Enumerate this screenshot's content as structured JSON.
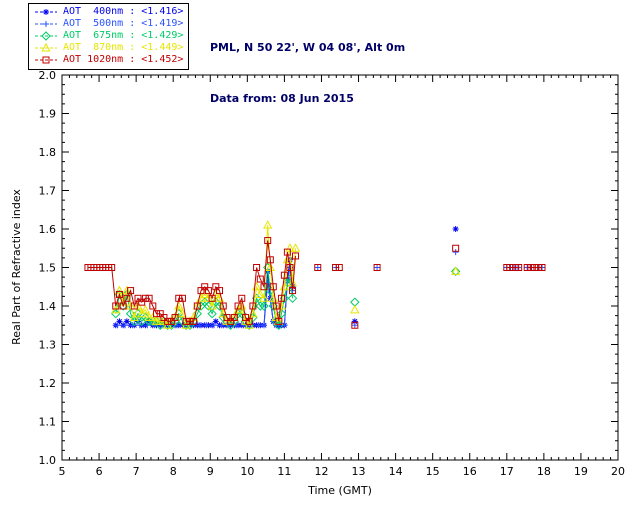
{
  "header": {
    "location": "PML, N 50 22', W 04 08', Alt 0m",
    "data_from": "Data from: 08 Jun 2015"
  },
  "chart_data": {
    "type": "line",
    "title": "",
    "xlabel": "Time (GMT)",
    "ylabel": "Real Part of Refractive index",
    "xlim": [
      5,
      20
    ],
    "ylim": [
      1.0,
      2.0
    ],
    "x_major_tick": 1,
    "y_major_tick": 0.1,
    "grid": false,
    "legend_position": "top-left",
    "series": [
      {
        "name": "AOT 400nm",
        "label": "AOT  400nm : <1.416>",
        "mean": "<1.416>",
        "color": "#0000ee",
        "marker": "asterisk",
        "points": [
          [
            6.45,
            1.35
          ],
          [
            6.55,
            1.36
          ],
          [
            6.65,
            1.35
          ],
          [
            6.75,
            1.36
          ],
          [
            6.85,
            1.35
          ],
          [
            6.95,
            1.35
          ],
          [
            7.05,
            1.36
          ],
          [
            7.15,
            1.35
          ],
          [
            7.25,
            1.35
          ],
          [
            7.35,
            1.36
          ],
          [
            7.45,
            1.35
          ],
          [
            7.55,
            1.35
          ],
          [
            7.65,
            1.35
          ],
          [
            7.75,
            1.35
          ],
          [
            7.85,
            1.35
          ],
          [
            7.95,
            1.35
          ],
          [
            8.05,
            1.35
          ],
          [
            8.15,
            1.35
          ],
          [
            8.25,
            1.35
          ],
          [
            8.35,
            1.35
          ],
          [
            8.45,
            1.35
          ],
          [
            8.55,
            1.35
          ],
          [
            8.65,
            1.35
          ],
          [
            8.75,
            1.35
          ],
          [
            8.85,
            1.35
          ],
          [
            8.95,
            1.35
          ],
          [
            9.05,
            1.35
          ],
          [
            9.15,
            1.36
          ],
          [
            9.25,
            1.35
          ],
          [
            9.35,
            1.35
          ],
          [
            9.45,
            1.35
          ],
          [
            9.55,
            1.35
          ],
          [
            9.65,
            1.35
          ],
          [
            9.75,
            1.35
          ],
          [
            9.85,
            1.35
          ],
          [
            9.95,
            1.35
          ],
          [
            10.05,
            1.35
          ],
          [
            10.15,
            1.35
          ],
          [
            10.25,
            1.35
          ],
          [
            10.35,
            1.35
          ],
          [
            10.45,
            1.35
          ],
          [
            10.55,
            1.49
          ],
          [
            10.62,
            1.42
          ],
          [
            10.7,
            1.36
          ],
          [
            10.78,
            1.35
          ],
          [
            10.85,
            1.35
          ],
          [
            10.92,
            1.35
          ],
          [
            11.0,
            1.35
          ],
          [
            11.08,
            1.47
          ],
          [
            11.15,
            1.52
          ],
          [
            11.22,
            1.45
          ],
          [
            12.9,
            1.36
          ],
          [
            15.62,
            1.6
          ]
        ]
      },
      {
        "name": "AOT 500nm",
        "label": "AOT  500nm : <1.419>",
        "mean": "<1.419>",
        "color": "#2a52ff",
        "marker": "plus",
        "points": [
          [
            6.5,
            1.35
          ],
          [
            6.7,
            1.35
          ],
          [
            6.9,
            1.35
          ],
          [
            7.1,
            1.35
          ],
          [
            7.3,
            1.35
          ],
          [
            7.5,
            1.35
          ],
          [
            7.7,
            1.35
          ],
          [
            7.9,
            1.35
          ],
          [
            8.1,
            1.35
          ],
          [
            8.3,
            1.35
          ],
          [
            8.5,
            1.35
          ],
          [
            8.7,
            1.35
          ],
          [
            8.9,
            1.35
          ],
          [
            9.1,
            1.35
          ],
          [
            9.3,
            1.35
          ],
          [
            9.5,
            1.35
          ],
          [
            9.7,
            1.35
          ],
          [
            9.9,
            1.35
          ],
          [
            10.1,
            1.35
          ],
          [
            10.3,
            1.35
          ],
          [
            10.45,
            1.35
          ],
          [
            10.55,
            1.46
          ],
          [
            10.7,
            1.36
          ],
          [
            10.85,
            1.35
          ],
          [
            11.0,
            1.35
          ],
          [
            11.08,
            1.46
          ],
          [
            11.15,
            1.5
          ],
          [
            11.22,
            1.44
          ],
          [
            11.9,
            1.5
          ],
          [
            12.4,
            1.5
          ],
          [
            12.9,
            1.35
          ],
          [
            13.5,
            1.5
          ],
          [
            15.62,
            1.54
          ],
          [
            17.0,
            1.5
          ],
          [
            17.1,
            1.5
          ],
          [
            17.2,
            1.5
          ],
          [
            17.3,
            1.5
          ],
          [
            17.55,
            1.5
          ],
          [
            17.65,
            1.5
          ],
          [
            17.85,
            1.5
          ],
          [
            17.95,
            1.5
          ]
        ]
      },
      {
        "name": "AOT 675nm",
        "label": "AOT  675nm : <1.429>",
        "mean": "<1.429>",
        "color": "#00cc66",
        "marker": "diamond",
        "points": [
          [
            6.45,
            1.38
          ],
          [
            6.55,
            1.43
          ],
          [
            6.65,
            1.4
          ],
          [
            6.75,
            1.43
          ],
          [
            6.85,
            1.38
          ],
          [
            6.95,
            1.36
          ],
          [
            7.05,
            1.38
          ],
          [
            7.15,
            1.36
          ],
          [
            7.25,
            1.37
          ],
          [
            7.35,
            1.36
          ],
          [
            7.45,
            1.36
          ],
          [
            7.55,
            1.36
          ],
          [
            7.65,
            1.35
          ],
          [
            7.75,
            1.36
          ],
          [
            7.85,
            1.35
          ],
          [
            7.95,
            1.35
          ],
          [
            8.05,
            1.36
          ],
          [
            8.15,
            1.38
          ],
          [
            8.25,
            1.36
          ],
          [
            8.35,
            1.35
          ],
          [
            8.45,
            1.35
          ],
          [
            8.55,
            1.36
          ],
          [
            8.65,
            1.38
          ],
          [
            8.75,
            1.4
          ],
          [
            8.85,
            1.41
          ],
          [
            8.95,
            1.4
          ],
          [
            9.05,
            1.38
          ],
          [
            9.15,
            1.41
          ],
          [
            9.25,
            1.4
          ],
          [
            9.35,
            1.37
          ],
          [
            9.45,
            1.36
          ],
          [
            9.55,
            1.35
          ],
          [
            9.65,
            1.36
          ],
          [
            9.75,
            1.38
          ],
          [
            9.85,
            1.38
          ],
          [
            9.95,
            1.36
          ],
          [
            10.05,
            1.35
          ],
          [
            10.15,
            1.37
          ],
          [
            10.25,
            1.42
          ],
          [
            10.35,
            1.4
          ],
          [
            10.45,
            1.4
          ],
          [
            10.55,
            1.5
          ],
          [
            10.62,
            1.44
          ],
          [
            10.7,
            1.4
          ],
          [
            10.78,
            1.36
          ],
          [
            10.85,
            1.35
          ],
          [
            10.92,
            1.38
          ],
          [
            11.0,
            1.42
          ],
          [
            11.08,
            1.46
          ],
          [
            11.15,
            1.47
          ],
          [
            11.22,
            1.42
          ],
          [
            12.9,
            1.41
          ],
          [
            15.62,
            1.49
          ]
        ]
      },
      {
        "name": "AOT 870nm",
        "label": "AOT  870nm : <1.449>",
        "mean": "<1.449>",
        "color": "#e6e600",
        "marker": "triangle",
        "points": [
          [
            6.45,
            1.39
          ],
          [
            6.55,
            1.44
          ],
          [
            6.65,
            1.41
          ],
          [
            6.75,
            1.44
          ],
          [
            6.85,
            1.4
          ],
          [
            6.95,
            1.37
          ],
          [
            7.05,
            1.4
          ],
          [
            7.15,
            1.38
          ],
          [
            7.25,
            1.39
          ],
          [
            7.35,
            1.37
          ],
          [
            7.45,
            1.37
          ],
          [
            7.55,
            1.36
          ],
          [
            7.65,
            1.36
          ],
          [
            7.75,
            1.36
          ],
          [
            7.85,
            1.35
          ],
          [
            7.95,
            1.36
          ],
          [
            8.05,
            1.37
          ],
          [
            8.15,
            1.4
          ],
          [
            8.25,
            1.38
          ],
          [
            8.35,
            1.35
          ],
          [
            8.45,
            1.36
          ],
          [
            8.55,
            1.37
          ],
          [
            8.65,
            1.4
          ],
          [
            8.75,
            1.42
          ],
          [
            8.85,
            1.43
          ],
          [
            8.95,
            1.42
          ],
          [
            9.05,
            1.4
          ],
          [
            9.15,
            1.43
          ],
          [
            9.25,
            1.42
          ],
          [
            9.35,
            1.38
          ],
          [
            9.45,
            1.36
          ],
          [
            9.55,
            1.36
          ],
          [
            9.65,
            1.37
          ],
          [
            9.75,
            1.39
          ],
          [
            9.85,
            1.4
          ],
          [
            9.95,
            1.36
          ],
          [
            10.05,
            1.35
          ],
          [
            10.15,
            1.38
          ],
          [
            10.25,
            1.45
          ],
          [
            10.35,
            1.43
          ],
          [
            10.45,
            1.42
          ],
          [
            10.55,
            1.61
          ],
          [
            10.62,
            1.5
          ],
          [
            10.7,
            1.42
          ],
          [
            10.78,
            1.37
          ],
          [
            10.85,
            1.36
          ],
          [
            10.92,
            1.4
          ],
          [
            11.0,
            1.45
          ],
          [
            11.08,
            1.52
          ],
          [
            11.15,
            1.55
          ],
          [
            11.22,
            1.46
          ],
          [
            11.3,
            1.55
          ],
          [
            12.9,
            1.39
          ],
          [
            15.62,
            1.49
          ]
        ]
      },
      {
        "name": "AOT 1020nm",
        "label": "AOT 1020nm : <1.452>",
        "mean": "<1.452>",
        "color": "#c00000",
        "marker": "square",
        "points": [
          [
            5.7,
            1.5
          ],
          [
            5.78,
            1.5
          ],
          [
            5.86,
            1.5
          ],
          [
            5.94,
            1.5
          ],
          [
            6.02,
            1.5
          ],
          [
            6.1,
            1.5
          ],
          [
            6.18,
            1.5
          ],
          [
            6.26,
            1.5
          ],
          [
            6.34,
            1.5
          ],
          [
            6.45,
            1.4
          ],
          [
            6.55,
            1.43
          ],
          [
            6.65,
            1.4
          ],
          [
            6.75,
            1.42
          ],
          [
            6.85,
            1.44
          ],
          [
            6.95,
            1.4
          ],
          [
            7.05,
            1.42
          ],
          [
            7.15,
            1.41
          ],
          [
            7.25,
            1.42
          ],
          [
            7.35,
            1.42
          ],
          [
            7.45,
            1.4
          ],
          [
            7.55,
            1.38
          ],
          [
            7.65,
            1.38
          ],
          [
            7.75,
            1.37
          ],
          [
            7.85,
            1.36
          ],
          [
            7.95,
            1.36
          ],
          [
            8.05,
            1.37
          ],
          [
            8.15,
            1.42
          ],
          [
            8.25,
            1.42
          ],
          [
            8.35,
            1.36
          ],
          [
            8.45,
            1.36
          ],
          [
            8.55,
            1.36
          ],
          [
            8.65,
            1.4
          ],
          [
            8.75,
            1.44
          ],
          [
            8.85,
            1.45
          ],
          [
            8.95,
            1.44
          ],
          [
            9.05,
            1.42
          ],
          [
            9.15,
            1.45
          ],
          [
            9.25,
            1.44
          ],
          [
            9.35,
            1.4
          ],
          [
            9.45,
            1.37
          ],
          [
            9.55,
            1.36
          ],
          [
            9.65,
            1.37
          ],
          [
            9.75,
            1.4
          ],
          [
            9.85,
            1.42
          ],
          [
            9.95,
            1.37
          ],
          [
            10.05,
            1.36
          ],
          [
            10.15,
            1.4
          ],
          [
            10.25,
            1.5
          ],
          [
            10.35,
            1.47
          ],
          [
            10.45,
            1.45
          ],
          [
            10.55,
            1.57
          ],
          [
            10.62,
            1.52
          ],
          [
            10.7,
            1.45
          ],
          [
            10.78,
            1.4
          ],
          [
            10.85,
            1.36
          ],
          [
            10.92,
            1.42
          ],
          [
            11.0,
            1.48
          ],
          [
            11.08,
            1.54
          ],
          [
            11.15,
            1.5
          ],
          [
            11.22,
            1.44
          ],
          [
            11.3,
            1.53
          ],
          [
            11.9,
            1.5
          ],
          [
            12.38,
            1.5
          ],
          [
            12.48,
            1.5
          ],
          [
            12.9,
            1.35
          ],
          [
            13.5,
            1.5
          ],
          [
            15.62,
            1.55
          ],
          [
            17.0,
            1.5
          ],
          [
            17.08,
            1.5
          ],
          [
            17.16,
            1.5
          ],
          [
            17.24,
            1.5
          ],
          [
            17.32,
            1.5
          ],
          [
            17.55,
            1.5
          ],
          [
            17.65,
            1.5
          ],
          [
            17.75,
            1.5
          ],
          [
            17.85,
            1.5
          ],
          [
            17.95,
            1.5
          ]
        ]
      }
    ]
  }
}
